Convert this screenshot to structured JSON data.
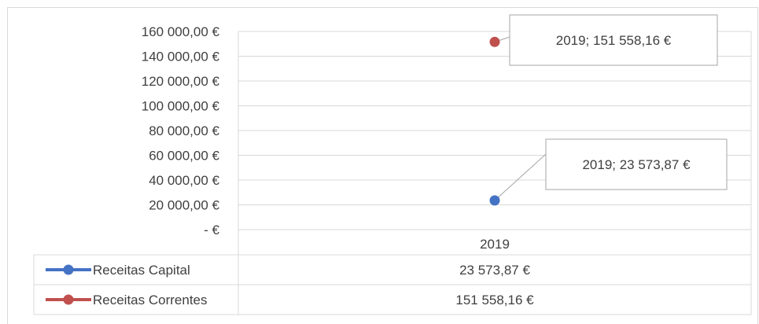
{
  "chart_data": {
    "type": "line",
    "categories": [
      "2019"
    ],
    "series": [
      {
        "name": "Receitas Capital",
        "values": [
          23573.87
        ],
        "color": "#4472C4",
        "value_text": "23 573,87 €",
        "callout": "2019;  23 573,87 €"
      },
      {
        "name": "Receitas Correntes",
        "values": [
          151558.16
        ],
        "color": "#C0504D",
        "value_text": "151 558,16 €",
        "callout": "2019;  151 558,16 €"
      }
    ],
    "ylim": [
      0,
      160000
    ],
    "yticks": [
      {
        "value": 160000,
        "label": "160 000,00 €"
      },
      {
        "value": 140000,
        "label": "140 000,00 €"
      },
      {
        "value": 120000,
        "label": "120 000,00 €"
      },
      {
        "value": 100000,
        "label": "100 000,00 €"
      },
      {
        "value": 80000,
        "label": "80 000,00 €"
      },
      {
        "value": 60000,
        "label": "60 000,00 €"
      },
      {
        "value": 40000,
        "label": "40 000,00 €"
      },
      {
        "value": 20000,
        "label": "20 000,00 €"
      },
      {
        "value": 0,
        "label": "-   €"
      }
    ],
    "grid": true,
    "legend": "data-table"
  }
}
